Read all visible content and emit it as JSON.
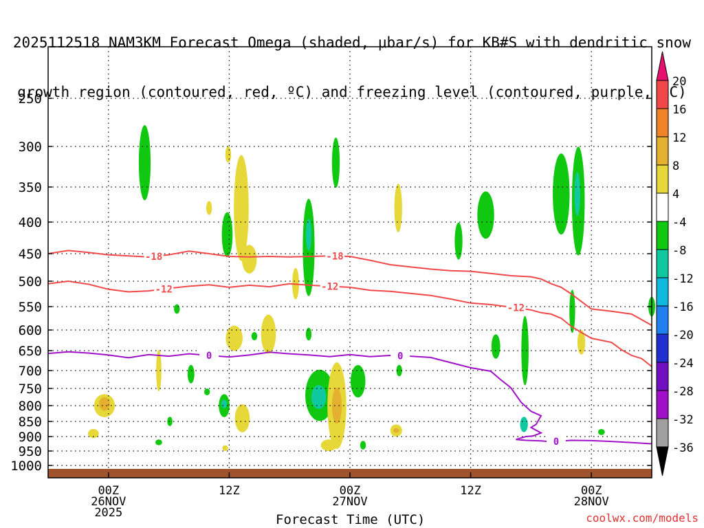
{
  "title_lines": [
    "2025112518 NAM3KM Forecast Omega (shaded, μbar/s) for KB#S with dendritic snow",
    "growth region (contoured, red, ºC) and freezing level (contoured, purple, ºC)"
  ],
  "footer": "coolwx.com/models",
  "chart_data": {
    "type": "contour",
    "title": "2025112518 NAM3KM Forecast Omega (shaded, μbar/s) for KB#S with dendritic snow growth region (contoured, red, ºC) and freezing level (contoured, purple, ºC)",
    "xlabel": "Forecast Time (UTC)",
    "ylabel": "",
    "x_units": "hours since 2025-11-25 18Z",
    "xlim": [
      0,
      60
    ],
    "ylim": [
      1000,
      200
    ],
    "x_ticks": [
      {
        "x": 6,
        "label": "00Z\n26NOV\n2025"
      },
      {
        "x": 18,
        "label": "12Z"
      },
      {
        "x": 30,
        "label": "00Z\n27NOV"
      },
      {
        "x": 42,
        "label": "12Z"
      },
      {
        "x": 54,
        "label": "00Z\n28NOV"
      }
    ],
    "y_ticks": [
      250,
      300,
      350,
      400,
      450,
      500,
      550,
      600,
      650,
      700,
      750,
      800,
      850,
      900,
      950,
      1000
    ],
    "colorbar": {
      "levels": [
        20,
        16,
        12,
        8,
        4,
        -4,
        -8,
        -12,
        -16,
        -20,
        -24,
        -28,
        -32,
        -36
      ],
      "colors": [
        "#e8106e",
        "#f04848",
        "#f08228",
        "#e4b030",
        "#e6d838",
        "#ffffff",
        "#10c810",
        "#10c8a0",
        "#10b8e0",
        "#2080f0",
        "#2030d0",
        "#7010c0",
        "#a010c8",
        "#a0a0a0",
        "#000000"
      ]
    },
    "omega_cells": [
      {
        "x": 9.6,
        "p": 320,
        "w": 0.9,
        "h": 90,
        "v": -6
      },
      {
        "x": 5.6,
        "p": 800,
        "w": 1.8,
        "h": 70,
        "v": 6
      },
      {
        "x": 5.6,
        "p": 795,
        "w": 0.8,
        "h": 40,
        "v": 10
      },
      {
        "x": 4.5,
        "p": 890,
        "w": 0.8,
        "h": 30,
        "v": 5
      },
      {
        "x": 11.0,
        "p": 700,
        "w": 0.25,
        "h": 110,
        "v": 5
      },
      {
        "x": 11.0,
        "p": 920,
        "w": 0.4,
        "h": 20,
        "v": -6
      },
      {
        "x": 12.1,
        "p": 850,
        "w": 0.25,
        "h": 30,
        "v": -6
      },
      {
        "x": 12.8,
        "p": 555,
        "w": 0.3,
        "h": 20,
        "v": -6
      },
      {
        "x": 14.2,
        "p": 710,
        "w": 0.4,
        "h": 50,
        "v": -6
      },
      {
        "x": 15.8,
        "p": 760,
        "w": 0.3,
        "h": 20,
        "v": -6
      },
      {
        "x": 16.0,
        "p": 380,
        "w": 0.3,
        "h": 20,
        "v": 5
      },
      {
        "x": 17.8,
        "p": 420,
        "w": 0.8,
        "h": 70,
        "v": -6
      },
      {
        "x": 17.9,
        "p": 310,
        "w": 0.3,
        "h": 20,
        "v": 5
      },
      {
        "x": 19.2,
        "p": 380,
        "w": 1.2,
        "h": 150,
        "v": 5
      },
      {
        "x": 20.0,
        "p": 460,
        "w": 1.2,
        "h": 50,
        "v": 5
      },
      {
        "x": 17.5,
        "p": 800,
        "w": 0.8,
        "h": 70,
        "v": -6
      },
      {
        "x": 17.5,
        "p": 795,
        "w": 0.3,
        "h": 25,
        "v": -10
      },
      {
        "x": 19.3,
        "p": 840,
        "w": 1.2,
        "h": 90,
        "v": 5
      },
      {
        "x": 18.5,
        "p": 620,
        "w": 1.4,
        "h": 60,
        "v": 5
      },
      {
        "x": 20.5,
        "p": 615,
        "w": 0.3,
        "h": 20,
        "v": -6
      },
      {
        "x": 21.9,
        "p": 610,
        "w": 1.2,
        "h": 90,
        "v": 5
      },
      {
        "x": 17.6,
        "p": 940,
        "w": 0.3,
        "h": 20,
        "v": 5
      },
      {
        "x": 24.6,
        "p": 505,
        "w": 0.4,
        "h": 60,
        "v": 5
      },
      {
        "x": 25.9,
        "p": 440,
        "w": 0.9,
        "h": 160,
        "v": -6
      },
      {
        "x": 25.9,
        "p": 420,
        "w": 0.3,
        "h": 50,
        "v": -10
      },
      {
        "x": 25.9,
        "p": 610,
        "w": 0.3,
        "h": 30,
        "v": -6
      },
      {
        "x": 28.6,
        "p": 320,
        "w": 0.5,
        "h": 60,
        "v": -6
      },
      {
        "x": 27.0,
        "p": 770,
        "w": 2.6,
        "h": 150,
        "v": -6
      },
      {
        "x": 26.9,
        "p": 775,
        "w": 1.2,
        "h": 70,
        "v": -10
      },
      {
        "x": 28.7,
        "p": 800,
        "w": 1.6,
        "h": 260,
        "v": 6
      },
      {
        "x": 28.7,
        "p": 800,
        "w": 0.7,
        "h": 110,
        "v": 11
      },
      {
        "x": 27.9,
        "p": 930,
        "w": 1.3,
        "h": 40,
        "v": 5
      },
      {
        "x": 30.8,
        "p": 730,
        "w": 1.2,
        "h": 90,
        "v": -6
      },
      {
        "x": 31.3,
        "p": 930,
        "w": 0.3,
        "h": 30,
        "v": -6
      },
      {
        "x": 34.8,
        "p": 380,
        "w": 0.5,
        "h": 70,
        "v": 5
      },
      {
        "x": 34.6,
        "p": 880,
        "w": 0.9,
        "h": 40,
        "v": 6
      },
      {
        "x": 34.6,
        "p": 880,
        "w": 0.3,
        "h": 15,
        "v": 10
      },
      {
        "x": 34.9,
        "p": 700,
        "w": 0.3,
        "h": 30,
        "v": -6
      },
      {
        "x": 40.8,
        "p": 430,
        "w": 0.5,
        "h": 60,
        "v": -6
      },
      {
        "x": 43.5,
        "p": 390,
        "w": 1.4,
        "h": 70,
        "v": -6
      },
      {
        "x": 44.5,
        "p": 640,
        "w": 0.6,
        "h": 60,
        "v": -6
      },
      {
        "x": 47.4,
        "p": 650,
        "w": 0.45,
        "h": 170,
        "v": -6
      },
      {
        "x": 47.3,
        "p": 860,
        "w": 0.5,
        "h": 50,
        "v": -10
      },
      {
        "x": 51.0,
        "p": 360,
        "w": 1.4,
        "h": 110,
        "v": -6
      },
      {
        "x": 52.7,
        "p": 370,
        "w": 1.0,
        "h": 150,
        "v": -6
      },
      {
        "x": 52.6,
        "p": 360,
        "w": 0.3,
        "h": 60,
        "v": -10
      },
      {
        "x": 52.1,
        "p": 560,
        "w": 0.3,
        "h": 90,
        "v": -6
      },
      {
        "x": 53.0,
        "p": 630,
        "w": 0.5,
        "h": 60,
        "v": 5
      },
      {
        "x": 55.0,
        "p": 885,
        "w": 0.4,
        "h": 20,
        "v": -6
      },
      {
        "x": 60.0,
        "p": 550,
        "w": 0.4,
        "h": 40,
        "v": -6
      }
    ],
    "contours": [
      {
        "color": "#f04848",
        "label": "-18",
        "points": [
          [
            0,
            450
          ],
          [
            2,
            445
          ],
          [
            4,
            448
          ],
          [
            6,
            452
          ],
          [
            8,
            454
          ],
          [
            10,
            456
          ],
          [
            12,
            452
          ],
          [
            14,
            446
          ],
          [
            16,
            450
          ],
          [
            18,
            455
          ],
          [
            20,
            456
          ],
          [
            22,
            455
          ],
          [
            24,
            456
          ],
          [
            26,
            455
          ],
          [
            28,
            454
          ],
          [
            30,
            455
          ],
          [
            32,
            462
          ],
          [
            34,
            470
          ],
          [
            36,
            474
          ],
          [
            38,
            478
          ],
          [
            40,
            481
          ],
          [
            42,
            482
          ],
          [
            44,
            486
          ],
          [
            46,
            490
          ],
          [
            48,
            492
          ],
          [
            49,
            496
          ],
          [
            50,
            505
          ],
          [
            51,
            512
          ],
          [
            52,
            525
          ],
          [
            53,
            540
          ],
          [
            54,
            555
          ],
          [
            56,
            560
          ],
          [
            58,
            566
          ],
          [
            59,
            578
          ],
          [
            60,
            590
          ]
        ],
        "label_x": [
          10.5,
          28.5
        ]
      },
      {
        "color": "#f04848",
        "label": "-12",
        "points": [
          [
            0,
            505
          ],
          [
            2,
            500
          ],
          [
            4,
            506
          ],
          [
            6,
            516
          ],
          [
            8,
            521
          ],
          [
            10,
            519
          ],
          [
            12,
            514
          ],
          [
            14,
            510
          ],
          [
            16,
            507
          ],
          [
            18,
            512
          ],
          [
            20,
            508
          ],
          [
            22,
            511
          ],
          [
            24,
            505
          ],
          [
            26,
            508
          ],
          [
            28,
            510
          ],
          [
            30,
            512
          ],
          [
            32,
            518
          ],
          [
            34,
            520
          ],
          [
            36,
            524
          ],
          [
            38,
            528
          ],
          [
            40,
            535
          ],
          [
            42,
            543
          ],
          [
            44,
            546
          ],
          [
            46,
            551
          ],
          [
            48,
            557
          ],
          [
            49,
            563
          ],
          [
            50,
            566
          ],
          [
            51,
            575
          ],
          [
            52,
            592
          ],
          [
            53,
            606
          ],
          [
            54,
            620
          ],
          [
            56,
            630
          ],
          [
            57,
            648
          ],
          [
            58,
            662
          ],
          [
            59,
            670
          ],
          [
            60,
            690
          ]
        ],
        "label_x": [
          11.5,
          28.0,
          46.5
        ]
      },
      {
        "color": "#a010c8",
        "label": "0",
        "points": [
          [
            0,
            657
          ],
          [
            2,
            653
          ],
          [
            4,
            656
          ],
          [
            6,
            661
          ],
          [
            8,
            668
          ],
          [
            10,
            660
          ],
          [
            12,
            664
          ],
          [
            14,
            658
          ],
          [
            16,
            662
          ],
          [
            18,
            666
          ],
          [
            20,
            661
          ],
          [
            22,
            654
          ],
          [
            24,
            658
          ],
          [
            26,
            661
          ],
          [
            28,
            665
          ],
          [
            30,
            660
          ],
          [
            32,
            665
          ],
          [
            34,
            662
          ],
          [
            36,
            664
          ],
          [
            38,
            667
          ],
          [
            40,
            680
          ],
          [
            42,
            693
          ],
          [
            44,
            702
          ],
          [
            45,
            726
          ],
          [
            46,
            748
          ],
          [
            47,
            790
          ],
          [
            48,
            818
          ],
          [
            49,
            832
          ],
          [
            48.5,
            860
          ],
          [
            48.0,
            870
          ],
          [
            49,
            888
          ],
          [
            48.2,
            898
          ],
          [
            47.5,
            900
          ],
          [
            47.0,
            905
          ],
          [
            46.5,
            910
          ],
          [
            47.5,
            913
          ],
          [
            49,
            915
          ],
          [
            50,
            918
          ],
          [
            52,
            913
          ],
          [
            54,
            914
          ],
          [
            56,
            917
          ],
          [
            58,
            921
          ],
          [
            60,
            925
          ]
        ],
        "label_x": [
          16.0,
          35.0,
          50.5
        ]
      }
    ],
    "annotations": [
      {
        "text": "Forecast Time (UTC)",
        "role": "xlabel"
      }
    ]
  }
}
